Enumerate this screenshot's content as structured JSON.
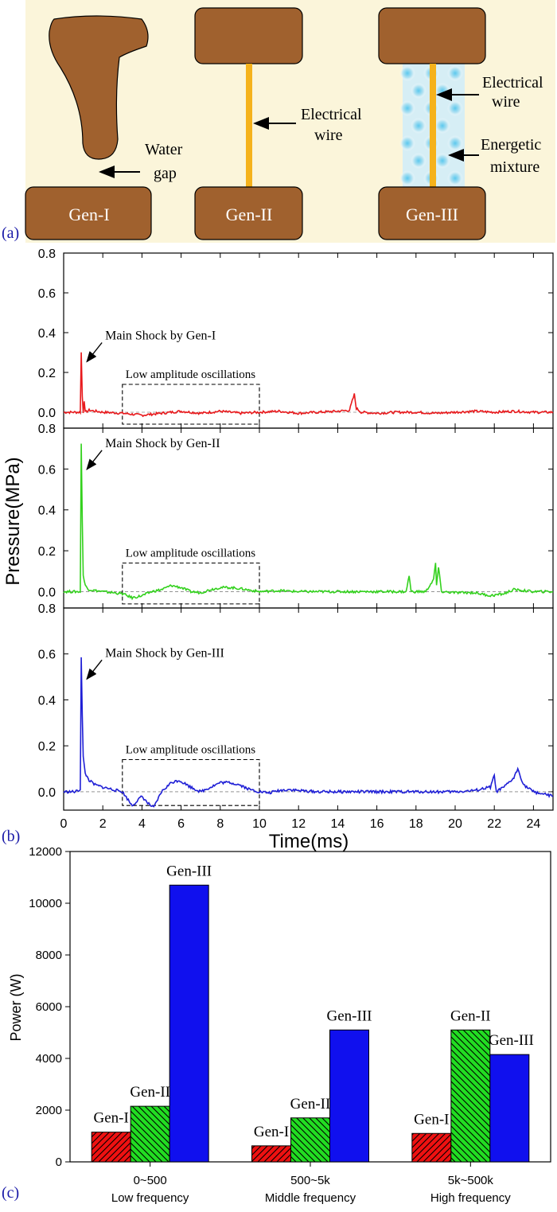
{
  "panel_labels": {
    "a": "(a)",
    "b": "(b)",
    "c": "(c)"
  },
  "panel_a": {
    "background": "#fbf5da",
    "electrode_color": "#a0612e",
    "wire_color": "#f5b21b",
    "gen1": {
      "label": "Gen-I",
      "annotation": [
        "Water",
        "gap"
      ]
    },
    "gen2": {
      "label": "Gen-II",
      "annotation": [
        "Electrical",
        "wire"
      ]
    },
    "gen3": {
      "label": "Gen-III",
      "wire_annotation": [
        "Electrical",
        "wire"
      ],
      "mixture_annotation": [
        "Energetic",
        "mixture"
      ]
    }
  },
  "chart_data": [
    {
      "type": "line",
      "panel": "b",
      "xlabel": "Time(ms)",
      "ylabel": "Pressure(MPa)",
      "xlim": [
        0,
        25
      ],
      "x_ticks": [
        "0",
        "2",
        "4",
        "6",
        "8",
        "10",
        "12",
        "14",
        "16",
        "18",
        "20",
        "22",
        "24"
      ],
      "y_ticks": [
        "0.0",
        "0.2",
        "0.4",
        "0.6",
        "0.8"
      ],
      "ylim": [
        -0.08,
        0.8
      ],
      "box_label": "Low amplitude oscillations",
      "box_x": [
        3,
        10
      ],
      "box_y": [
        -0.06,
        0.14
      ],
      "series": [
        {
          "color": "#e8191c",
          "annotation": "Main Shock by Gen-I",
          "points": [
            [
              0,
              0.0
            ],
            [
              0.6,
              0.0
            ],
            [
              0.85,
              0.0
            ],
            [
              0.9,
              0.3
            ],
            [
              0.95,
              0.08
            ],
            [
              1.0,
              0.0
            ],
            [
              1.05,
              0.06
            ],
            [
              1.1,
              0.0
            ],
            [
              1.3,
              0.01
            ],
            [
              2.0,
              0.0
            ],
            [
              3.0,
              -0.005
            ],
            [
              3.5,
              -0.01
            ],
            [
              4.0,
              -0.015
            ],
            [
              4.5,
              -0.01
            ],
            [
              5.0,
              -0.005
            ],
            [
              5.5,
              0.0
            ],
            [
              6.0,
              0.005
            ],
            [
              7.0,
              -0.005
            ],
            [
              8.0,
              0.005
            ],
            [
              9.0,
              -0.005
            ],
            [
              10.0,
              0.0
            ],
            [
              11.0,
              0.005
            ],
            [
              12.0,
              -0.005
            ],
            [
              13.0,
              0.0
            ],
            [
              14.0,
              0.005
            ],
            [
              14.6,
              0.01
            ],
            [
              14.85,
              0.09
            ],
            [
              14.95,
              0.02
            ],
            [
              15.2,
              0.0
            ],
            [
              16.0,
              -0.005
            ],
            [
              17.0,
              0.0
            ],
            [
              18.0,
              0.0
            ],
            [
              19.0,
              -0.005
            ],
            [
              20.0,
              0.0
            ],
            [
              21.0,
              0.005
            ],
            [
              22.0,
              0.0
            ],
            [
              23.0,
              0.005
            ],
            [
              24.0,
              0.0
            ],
            [
              25.0,
              0.0
            ]
          ]
        },
        {
          "color": "#33d11d",
          "annotation": "Main Shock by Gen-II",
          "points": [
            [
              0,
              0.0
            ],
            [
              0.6,
              0.0
            ],
            [
              0.85,
              0.0
            ],
            [
              0.9,
              0.72
            ],
            [
              0.95,
              0.35
            ],
            [
              1.0,
              0.08
            ],
            [
              1.1,
              0.03
            ],
            [
              1.3,
              0.01
            ],
            [
              2.0,
              0.0
            ],
            [
              3.0,
              -0.01
            ],
            [
              3.5,
              -0.03
            ],
            [
              4.0,
              -0.02
            ],
            [
              4.5,
              0.0
            ],
            [
              5.0,
              0.01
            ],
            [
              5.5,
              0.03
            ],
            [
              6.0,
              0.02
            ],
            [
              6.5,
              0.0
            ],
            [
              7.0,
              -0.005
            ],
            [
              7.5,
              0.01
            ],
            [
              8.0,
              0.02
            ],
            [
              8.5,
              0.02
            ],
            [
              9.0,
              0.015
            ],
            [
              10.0,
              0.0
            ],
            [
              11.0,
              0.005
            ],
            [
              12.0,
              0.0
            ],
            [
              13.0,
              0.0
            ],
            [
              14.0,
              0.0
            ],
            [
              15.0,
              0.0
            ],
            [
              16.0,
              0.0
            ],
            [
              17.5,
              0.0
            ],
            [
              17.65,
              0.08
            ],
            [
              17.75,
              0.0
            ],
            [
              18.5,
              0.0
            ],
            [
              18.9,
              0.06
            ],
            [
              19.0,
              0.14
            ],
            [
              19.05,
              0.03
            ],
            [
              19.15,
              0.12
            ],
            [
              19.3,
              0.0
            ],
            [
              20.0,
              -0.005
            ],
            [
              21.0,
              -0.005
            ],
            [
              21.8,
              -0.02
            ],
            [
              22.5,
              -0.01
            ],
            [
              23.0,
              0.01
            ],
            [
              23.5,
              0.005
            ],
            [
              24.0,
              0.0
            ],
            [
              25.0,
              0.0
            ]
          ]
        },
        {
          "color": "#1f1fd6",
          "annotation": "Main Shock by Gen-III",
          "points": [
            [
              0,
              0.0
            ],
            [
              0.6,
              0.0
            ],
            [
              0.85,
              0.01
            ],
            [
              0.9,
              0.59
            ],
            [
              0.95,
              0.33
            ],
            [
              1.0,
              0.15
            ],
            [
              1.1,
              0.08
            ],
            [
              1.3,
              0.05
            ],
            [
              1.6,
              0.03
            ],
            [
              2.0,
              0.02
            ],
            [
              2.5,
              0.01
            ],
            [
              3.0,
              0.0
            ],
            [
              3.5,
              -0.06
            ],
            [
              4.0,
              -0.02
            ],
            [
              4.3,
              -0.05
            ],
            [
              4.6,
              -0.07
            ],
            [
              5.0,
              0.0
            ],
            [
              5.5,
              0.04
            ],
            [
              5.9,
              0.05
            ],
            [
              6.5,
              0.02
            ],
            [
              7.0,
              0.0
            ],
            [
              7.5,
              0.02
            ],
            [
              8.0,
              0.04
            ],
            [
              8.5,
              0.04
            ],
            [
              9.0,
              0.03
            ],
            [
              9.5,
              0.01
            ],
            [
              10.0,
              0.0
            ],
            [
              10.5,
              -0.005
            ],
            [
              11.0,
              0.005
            ],
            [
              11.5,
              0.01
            ],
            [
              12.0,
              0.005
            ],
            [
              13.0,
              0.0
            ],
            [
              14.0,
              0.0
            ],
            [
              15.0,
              0.0
            ],
            [
              16.0,
              0.0
            ],
            [
              17.0,
              0.0
            ],
            [
              18.0,
              0.0
            ],
            [
              19.0,
              0.0
            ],
            [
              20.0,
              0.0
            ],
            [
              21.0,
              0.005
            ],
            [
              21.8,
              0.02
            ],
            [
              22.0,
              0.07
            ],
            [
              22.1,
              0.0
            ],
            [
              22.5,
              0.02
            ],
            [
              23.0,
              0.06
            ],
            [
              23.2,
              0.1
            ],
            [
              23.5,
              0.03
            ],
            [
              24.0,
              0.0
            ],
            [
              24.5,
              -0.01
            ],
            [
              25.0,
              -0.02
            ]
          ]
        }
      ]
    },
    {
      "type": "bar",
      "panel": "c",
      "ylabel": "Power (W)",
      "ylim": [
        0,
        12000
      ],
      "y_ticks": [
        "0",
        "2000",
        "4000",
        "6000",
        "8000",
        "10000",
        "12000"
      ],
      "categories": [
        [
          "0~500",
          "Low frequency"
        ],
        [
          "500~5k",
          "Middle frequency"
        ],
        [
          "5k~500k",
          "High frequency"
        ]
      ],
      "series": [
        {
          "name": "Gen-I",
          "color": "#ee1111",
          "hatch": "backslash",
          "values": [
            1150,
            620,
            1100
          ]
        },
        {
          "name": "Gen-II",
          "color": "#22dd22",
          "hatch": "forward",
          "values": [
            2150,
            1700,
            5100
          ]
        },
        {
          "name": "Gen-III",
          "color": "#1010ee",
          "hatch": "none",
          "values": [
            10700,
            5100,
            4150
          ]
        }
      ]
    }
  ]
}
